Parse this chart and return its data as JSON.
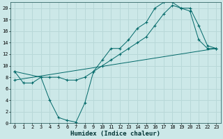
{
  "title": "",
  "xlabel": "Humidex (Indice chaleur)",
  "bg_color": "#cce8e8",
  "line_color": "#006868",
  "grid_color": "#b8d8d8",
  "xlim": [
    -0.5,
    23.5
  ],
  "ylim": [
    0,
    21
  ],
  "xticks": [
    0,
    1,
    2,
    3,
    4,
    5,
    6,
    7,
    8,
    9,
    10,
    11,
    12,
    13,
    14,
    15,
    16,
    17,
    18,
    19,
    20,
    21,
    22,
    23
  ],
  "yticks": [
    0,
    2,
    4,
    6,
    8,
    10,
    12,
    14,
    16,
    18,
    20
  ],
  "line1_x": [
    0,
    1,
    2,
    3,
    4,
    5,
    6,
    7,
    8,
    9,
    10,
    11,
    12,
    13,
    14,
    15,
    16,
    17,
    18,
    19,
    20,
    21,
    22,
    23
  ],
  "line1_y": [
    9.0,
    7.0,
    7.0,
    8.0,
    4.0,
    1.0,
    0.5,
    0.2,
    3.5,
    9.0,
    11.0,
    13.0,
    13.0,
    14.5,
    16.5,
    17.5,
    20.0,
    21.0,
    21.0,
    20.0,
    19.5,
    14.5,
    13.0,
    13.0
  ],
  "line2_x": [
    0,
    3,
    4,
    5,
    6,
    7,
    8,
    9,
    10,
    11,
    12,
    13,
    14,
    15,
    16,
    17,
    18,
    19,
    20,
    21,
    22,
    23
  ],
  "line2_y": [
    9.0,
    8.0,
    8.0,
    8.0,
    7.5,
    7.5,
    8.0,
    9.0,
    10.0,
    11.0,
    12.0,
    13.0,
    14.0,
    15.0,
    17.0,
    19.0,
    20.5,
    20.0,
    20.0,
    17.0,
    13.5,
    13.0
  ],
  "line3_x": [
    0,
    23
  ],
  "line3_y": [
    7.5,
    13.0
  ],
  "xlabel_fontsize": 6.5,
  "tick_fontsize": 5.0
}
